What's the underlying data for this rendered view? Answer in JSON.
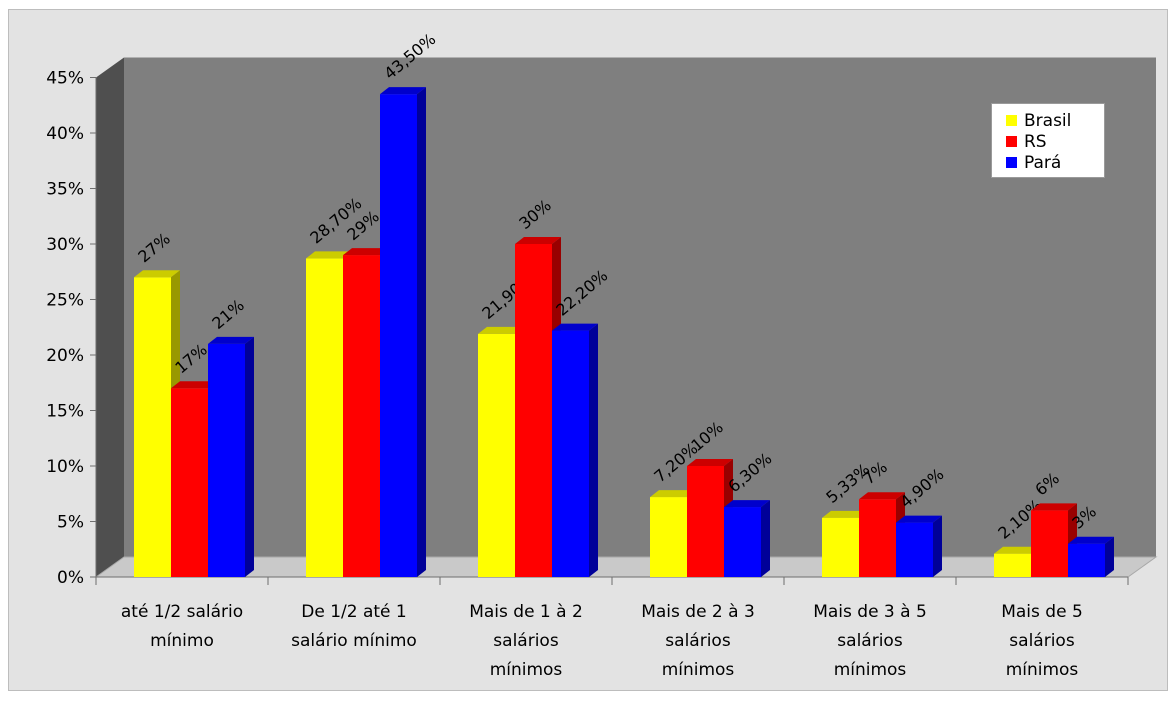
{
  "chart_data": {
    "type": "bar",
    "categories": [
      [
        "até 1/2 salário",
        "mínimo"
      ],
      [
        "De 1/2 até 1",
        "salário mínimo"
      ],
      [
        "Mais de 1 à 2",
        "salários",
        "mínimos"
      ],
      [
        "Mais de 2 à 3",
        "salários",
        "mínimos"
      ],
      [
        "Mais de 3 à 5",
        "salários",
        "mínimos"
      ],
      [
        "Mais de 5",
        "salários",
        "mínimos"
      ]
    ],
    "series": [
      {
        "name": "Brasil",
        "color": "#ffff00",
        "values": [
          27,
          28.7,
          21.9,
          7.2,
          5.33,
          2.1
        ],
        "labels": [
          "27%",
          "28,70%",
          "21,90%",
          "7,20%",
          "5,33%",
          "2,10%"
        ]
      },
      {
        "name": "RS",
        "color": "#ff0000",
        "values": [
          17,
          29,
          30,
          10,
          7,
          6
        ],
        "labels": [
          "17%",
          "29%",
          "30%",
          "10%",
          "7%",
          "6%"
        ]
      },
      {
        "name": "Pará",
        "color": "#0000ff",
        "values": [
          21,
          43.5,
          22.2,
          6.3,
          4.9,
          3
        ],
        "labels": [
          "21%",
          "43,50%",
          "22,20%",
          "6,30%",
          "4,90%",
          "3%"
        ]
      }
    ],
    "yticks": [
      "0%",
      "5%",
      "10%",
      "15%",
      "20%",
      "25%",
      "30%",
      "35%",
      "40%",
      "45%"
    ],
    "ylim": [
      0,
      45
    ],
    "legend_position": "top-right",
    "grid": false
  }
}
